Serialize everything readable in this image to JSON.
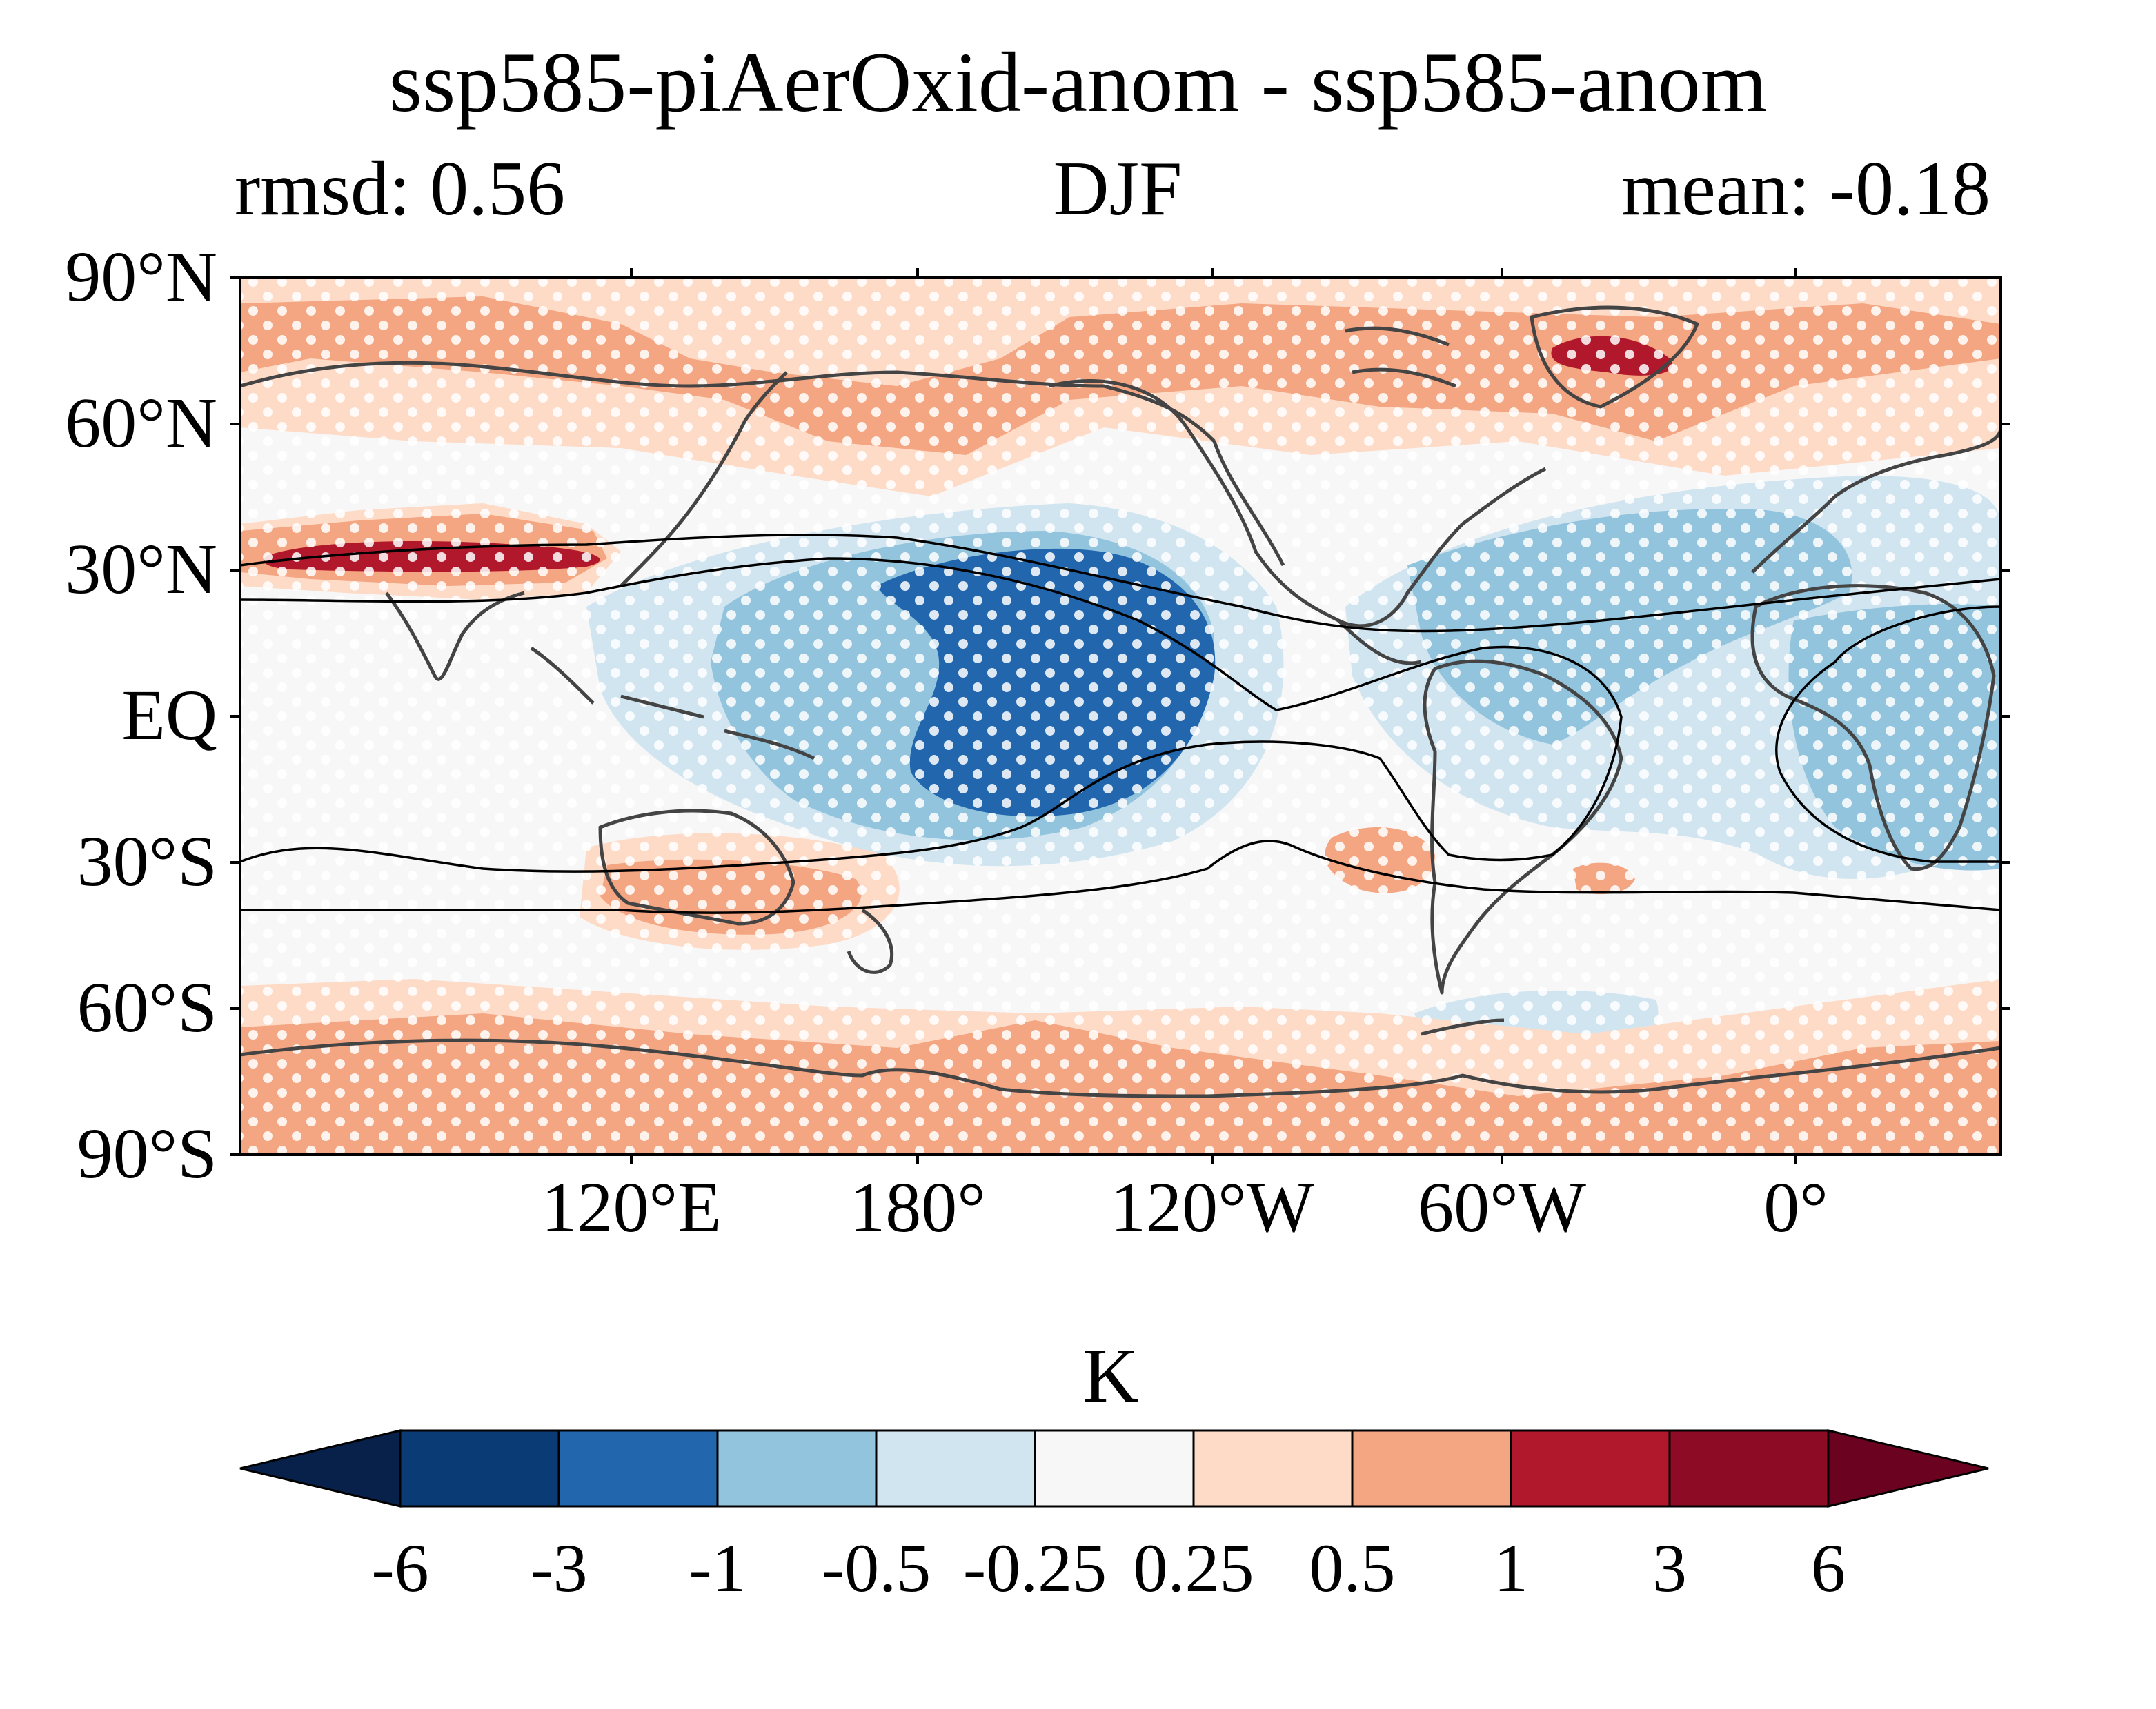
{
  "title": "ssp585-piAerOxid-anom - ssp585-anom",
  "subtitle_left": "rmsd: 0.56",
  "subtitle_center": "DJF",
  "subtitle_right": "mean: -0.18",
  "lat_labels": [
    "90°N",
    "60°N",
    "30°N",
    "EQ",
    "30°S",
    "60°S",
    "90°S"
  ],
  "lon_labels": [
    "120°E",
    "180°",
    "120°W",
    "60°W",
    "0°"
  ],
  "colorbar": {
    "unit": "K",
    "ticks": [
      "-6",
      "-3",
      "-1",
      "-0.5",
      "-0.25",
      "0.25",
      "0.5",
      "1",
      "3",
      "6"
    ],
    "colors": [
      "#08214a",
      "#0b3b75",
      "#2266ae",
      "#93c4de",
      "#d1e5f0",
      "#f7f7f7",
      "#fddbc7",
      "#f4a582",
      "#b2182b",
      "#8e0b25",
      "#6a0220"
    ]
  },
  "chart_data": {
    "type": "heatmap",
    "projection": "PlateCarree, central longitude 60°E",
    "variable_unit": "K",
    "season": "DJF",
    "rmsd": 0.56,
    "mean": -0.18,
    "contour_levels": [
      -6,
      -3,
      -1,
      -0.5,
      -0.25,
      0.25,
      0.5,
      1,
      3,
      6
    ],
    "colorbar_extend": "both",
    "stippling": "white dots over most regions"
  }
}
